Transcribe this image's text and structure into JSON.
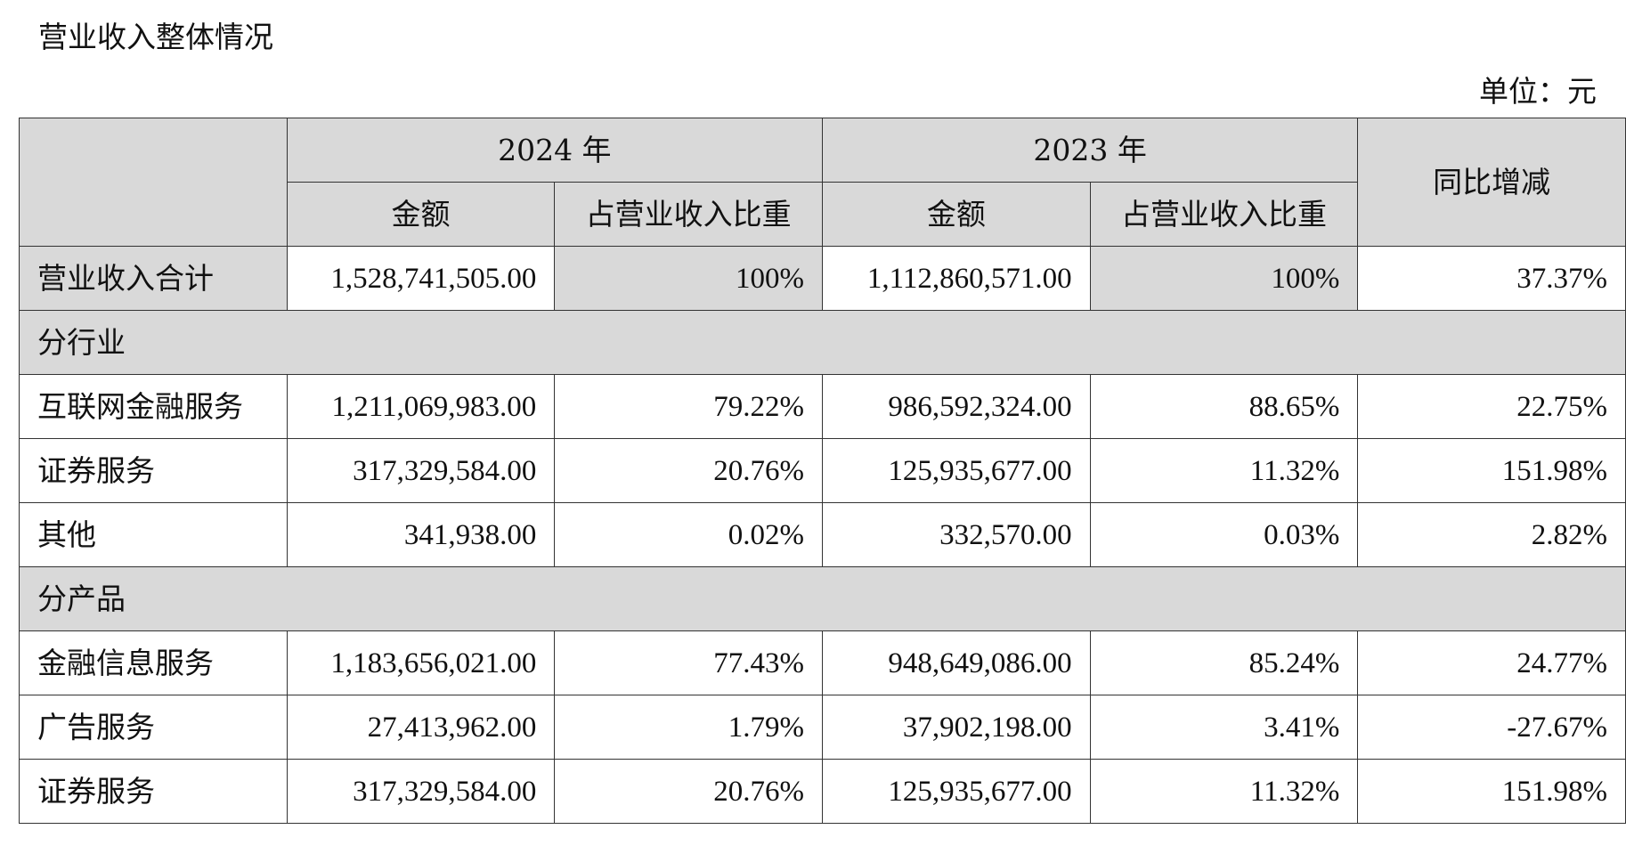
{
  "title": "营业收入整体情况",
  "unit": "单位：元",
  "header": {
    "year_2024": "2024 年",
    "year_2023": "2023 年",
    "yoy": "同比增减",
    "amount": "金额",
    "share": "占营业收入比重"
  },
  "total": {
    "label": "营业收入合计",
    "amount_2024": "1,528,741,505.00",
    "share_2024": "100%",
    "amount_2023": "1,112,860,571.00",
    "share_2023": "100%",
    "yoy": "37.37%"
  },
  "sections": {
    "by_industry": "分行业",
    "by_product": "分产品"
  },
  "industry_rows": [
    {
      "label": "互联网金融服务",
      "amount_2024": "1,211,069,983.00",
      "share_2024": "79.22%",
      "amount_2023": "986,592,324.00",
      "share_2023": "88.65%",
      "yoy": "22.75%"
    },
    {
      "label": "证券服务",
      "amount_2024": "317,329,584.00",
      "share_2024": "20.76%",
      "amount_2023": "125,935,677.00",
      "share_2023": "11.32%",
      "yoy": "151.98%"
    },
    {
      "label": "其他",
      "amount_2024": "341,938.00",
      "share_2024": "0.02%",
      "amount_2023": "332,570.00",
      "share_2023": "0.03%",
      "yoy": "2.82%"
    }
  ],
  "product_rows": [
    {
      "label": "金融信息服务",
      "amount_2024": "1,183,656,021.00",
      "share_2024": "77.43%",
      "amount_2023": "948,649,086.00",
      "share_2023": "85.24%",
      "yoy": "24.77%"
    },
    {
      "label": "广告服务",
      "amount_2024": "27,413,962.00",
      "share_2024": "1.79%",
      "amount_2023": "37,902,198.00",
      "share_2023": "3.41%",
      "yoy": "-27.67%"
    },
    {
      "label": "证券服务",
      "amount_2024": "317,329,584.00",
      "share_2024": "20.76%",
      "amount_2023": "125,935,677.00",
      "share_2023": "11.32%",
      "yoy": "151.98%"
    }
  ]
}
